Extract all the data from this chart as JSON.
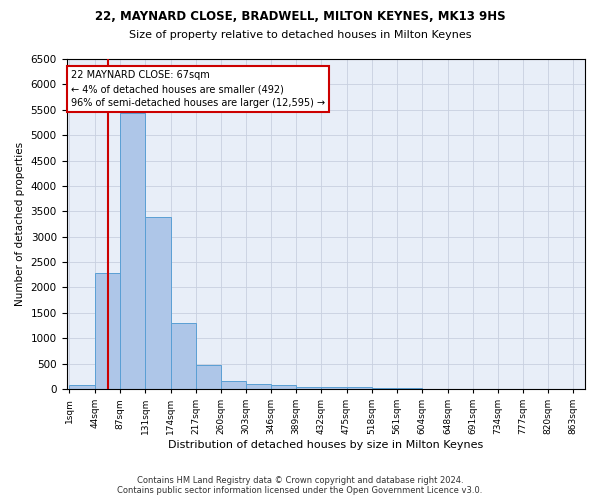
{
  "title": "22, MAYNARD CLOSE, BRADWELL, MILTON KEYNES, MK13 9HS",
  "subtitle": "Size of property relative to detached houses in Milton Keynes",
  "xlabel": "Distribution of detached houses by size in Milton Keynes",
  "ylabel": "Number of detached properties",
  "footer_line1": "Contains HM Land Registry data © Crown copyright and database right 2024.",
  "footer_line2": "Contains public sector information licensed under the Open Government Licence v3.0.",
  "annotation_title": "22 MAYNARD CLOSE: 67sqm",
  "annotation_line1": "← 4% of detached houses are smaller (492)",
  "annotation_line2": "96% of semi-detached houses are larger (12,595) →",
  "property_size": 67,
  "bin_edges": [
    1,
    44,
    87,
    131,
    174,
    217,
    260,
    303,
    346,
    389,
    432,
    475,
    518,
    561,
    604,
    648,
    691,
    734,
    777,
    820,
    863
  ],
  "bar_heights": [
    75,
    2280,
    5430,
    3390,
    1310,
    480,
    160,
    100,
    75,
    50,
    40,
    35,
    25,
    15,
    10,
    8,
    5,
    4,
    3,
    2
  ],
  "bar_color": "#aec6e8",
  "bar_edge_color": "#5a9fd4",
  "vline_color": "#cc0000",
  "annotation_box_edge": "#cc0000",
  "background_color": "#ffffff",
  "axes_bg_color": "#e8eef8",
  "grid_color": "#c8d0e0",
  "ylim": [
    0,
    6500
  ],
  "yticks": [
    0,
    500,
    1000,
    1500,
    2000,
    2500,
    3000,
    3500,
    4000,
    4500,
    5000,
    5500,
    6000,
    6500
  ]
}
